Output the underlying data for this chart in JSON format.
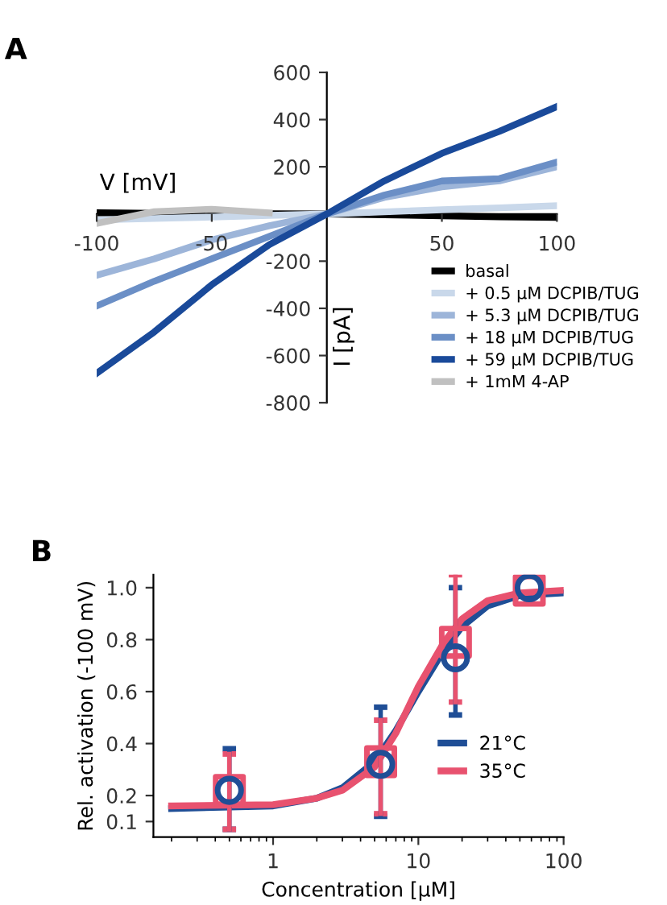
{
  "chart_data": [
    {
      "type": "line",
      "title": "A",
      "xlabel": "V [mV]",
      "ylabel": "I [pA]",
      "xlim": [
        -100,
        100
      ],
      "ylim": [
        -800,
        600
      ],
      "xticks": [
        -100,
        -50,
        50,
        100
      ],
      "yticks": [
        -800,
        -600,
        -400,
        -200,
        200,
        400,
        600
      ],
      "x": [
        -100,
        -75,
        -50,
        -25,
        0,
        25,
        50,
        75,
        100
      ],
      "legend": "bottom right",
      "grid": false,
      "series": [
        {
          "name": "basal",
          "color": "#000000",
          "values": [
            5,
            3,
            2,
            1,
            0,
            -4,
            -8,
            -12,
            -15
          ]
        },
        {
          "name": "+ 0.5 µM DCPIB/TUG",
          "color": "#c9d8ea",
          "values": [
            -25,
            -19,
            -13,
            -6,
            0,
            9,
            18,
            26,
            35
          ]
        },
        {
          "name": "+ 5.3 µM DCPIB/TUG",
          "color": "#9db5d9",
          "values": [
            -260,
            -190,
            -110,
            -50,
            0,
            70,
            115,
            140,
            200
          ]
        },
        {
          "name": "+ 18 µM DCPIB/TUG",
          "color": "#6b8fc6",
          "values": [
            -390,
            -285,
            -190,
            -95,
            0,
            80,
            140,
            150,
            220
          ]
        },
        {
          "name": "+ 59 µM DCPIB/TUG",
          "color": "#1a4a9a",
          "values": [
            -675,
            -500,
            -300,
            -130,
            0,
            140,
            257,
            350,
            455
          ]
        },
        {
          "name": "+ 1mM 4-AP",
          "color": "#c0c0c0",
          "values": [
            -40,
            10,
            20,
            5,
            null,
            null,
            null,
            null,
            null
          ]
        }
      ]
    },
    {
      "type": "scatter",
      "title": "B",
      "xlabel": "Concentration [µM]",
      "ylabel": "Rel. activation (-100 mV)",
      "log": "x",
      "xlim": [
        0.15,
        100
      ],
      "ylim": [
        0.04,
        1.05
      ],
      "xticks": [
        1,
        10,
        100
      ],
      "yticks": [
        0.1,
        0.2,
        0.4,
        0.6,
        0.8,
        {
          "value": 1.0,
          "label": "1.0"
        }
      ],
      "legend": "right",
      "grid": false,
      "series": [
        {
          "type": "line",
          "name": "21°C",
          "color": "#1f4e96",
          "x": [
            0.2,
            1,
            2,
            3,
            5,
            7,
            10,
            15,
            20,
            30,
            50,
            100
          ],
          "values": [
            0.15,
            0.16,
            0.19,
            0.23,
            0.33,
            0.45,
            0.6,
            0.76,
            0.85,
            0.93,
            0.97,
            0.98
          ]
        },
        {
          "type": "line",
          "name": "35°C",
          "color": "#e8526f",
          "x": [
            0.2,
            1,
            2,
            3,
            5,
            7,
            10,
            15,
            20,
            30,
            50,
            100
          ],
          "values": [
            0.16,
            0.165,
            0.19,
            0.22,
            0.31,
            0.44,
            0.62,
            0.79,
            0.88,
            0.95,
            0.98,
            0.99
          ]
        },
        {
          "type": "scatter",
          "marker": "circle",
          "color": "#1f4e96",
          "x": [
            0.5,
            5.5,
            18,
            58
          ],
          "values": [
            0.22,
            0.32,
            0.73,
            1.0
          ],
          "errors": [
            [
              0.07,
              0.38
            ],
            [
              0.12,
              0.54
            ],
            [
              0.51,
              1.0
            ],
            null
          ]
        },
        {
          "type": "scatter",
          "marker": "square",
          "color": "#e8526f",
          "x": [
            0.5,
            5.5,
            18,
            58
          ],
          "values": [
            0.22,
            0.33,
            0.79,
            0.99
          ],
          "errors": [
            [
              0.07,
              0.36
            ],
            [
              0.13,
              0.49
            ],
            [
              0.56,
              1.05
            ],
            null
          ]
        }
      ]
    }
  ]
}
